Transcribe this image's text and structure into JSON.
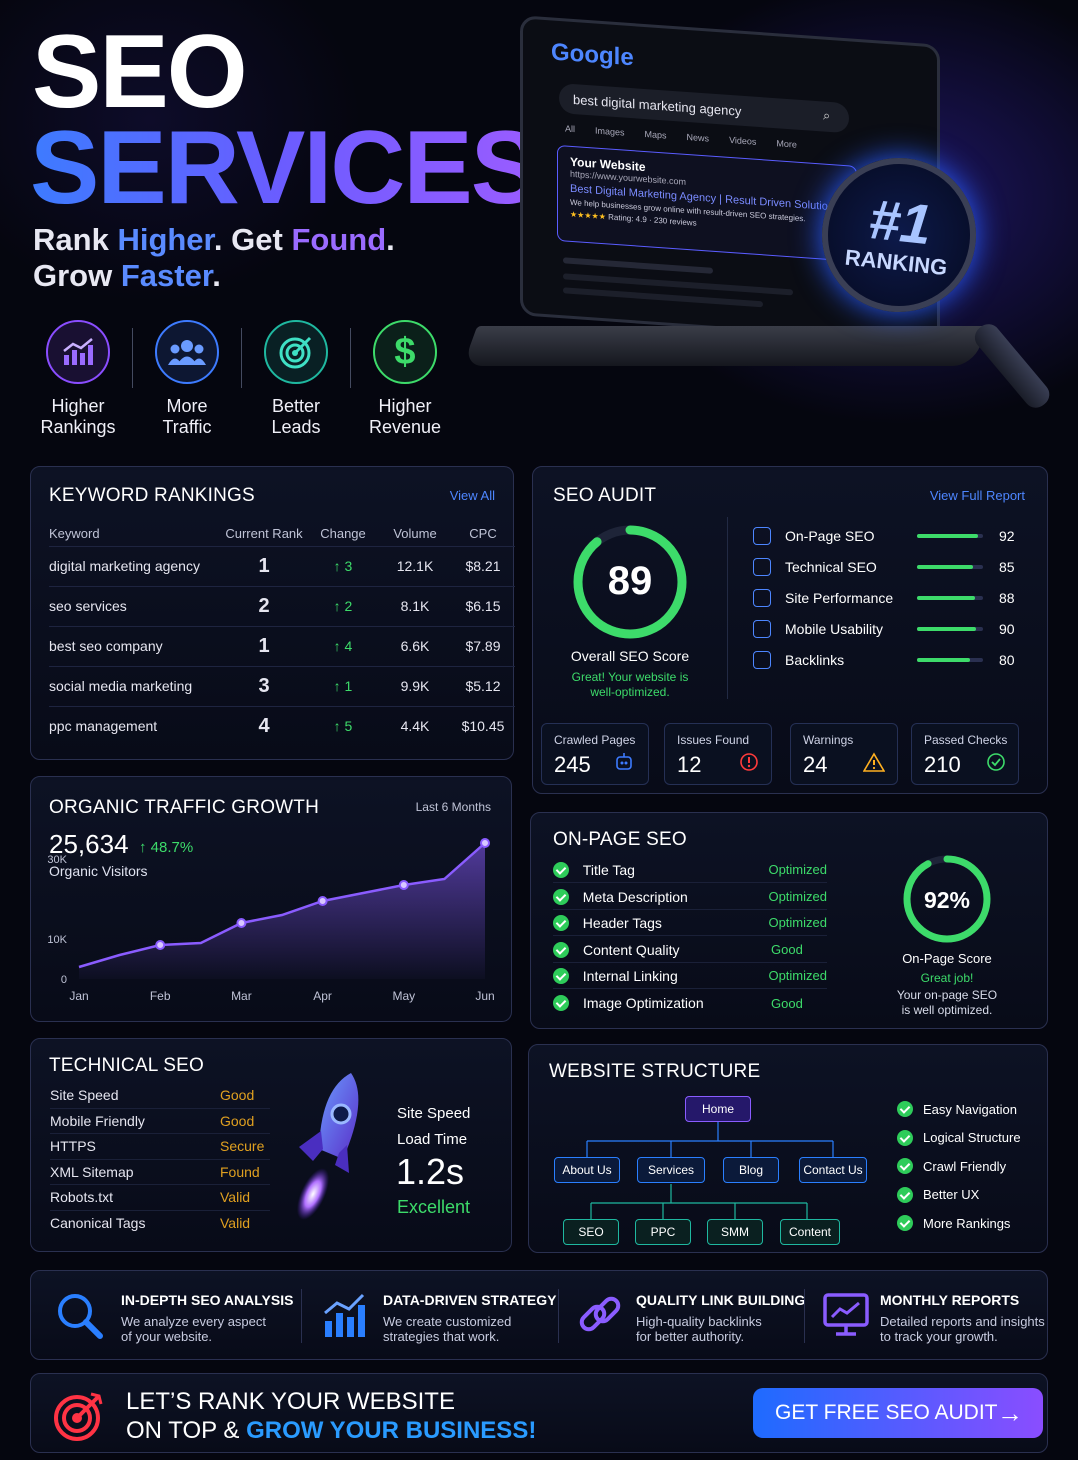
{
  "hero": {
    "title_line1": "SEO",
    "title_line2": "SERVICES",
    "tagline": {
      "w1": "Rank",
      "w2": "Higher",
      "w3": "Get",
      "w4": "Found",
      "w5": "Grow",
      "w6": "Faster"
    }
  },
  "benefits": [
    {
      "label_line1": "Higher",
      "label_line2": "Rankings",
      "icon": "chart-icon",
      "color": "#8a4dff"
    },
    {
      "label_line1": "More",
      "label_line2": "Traffic",
      "icon": "users-icon",
      "color": "#3d7bff"
    },
    {
      "label_line1": "Better",
      "label_line2": "Leads",
      "icon": "target-icon",
      "color": "#1fb8a0"
    },
    {
      "label_line1": "Higher",
      "label_line2": "Revenue",
      "icon": "dollar-icon",
      "color": "#3ddb6a"
    }
  ],
  "laptop": {
    "brand": "Google",
    "query": "best digital marketing agency",
    "tabs": [
      "All",
      "Images",
      "Maps",
      "News",
      "Videos",
      "More"
    ],
    "result_title": "Your Website",
    "result_url": "https://www.yourwebsite.com",
    "result_headline": "Best Digital Marketing Agency | Result Driven Solutions",
    "result_desc": "We help businesses grow online with result-driven SEO strategies.",
    "rating_stars": "★★★★★",
    "rating": "Rating: 4.9 · 230 reviews",
    "badge_number": "#1",
    "badge_text": "RANKING"
  },
  "keyword_rankings": {
    "title": "KEYWORD RANKINGS",
    "link": "View All",
    "headers": [
      "Keyword",
      "Current Rank",
      "Change",
      "Volume",
      "CPC"
    ],
    "rows": [
      {
        "keyword": "digital marketing agency",
        "rank": "1",
        "change": "↑ 3",
        "volume": "12.1K",
        "cpc": "$8.21"
      },
      {
        "keyword": "seo services",
        "rank": "2",
        "change": "↑ 2",
        "volume": "8.1K",
        "cpc": "$6.15"
      },
      {
        "keyword": "best seo company",
        "rank": "1",
        "change": "↑ 4",
        "volume": "6.6K",
        "cpc": "$7.89"
      },
      {
        "keyword": "social media marketing",
        "rank": "3",
        "change": "↑ 1",
        "volume": "9.9K",
        "cpc": "$5.12"
      },
      {
        "keyword": "ppc management",
        "rank": "4",
        "change": "↑ 5",
        "volume": "4.4K",
        "cpc": "$10.45"
      }
    ]
  },
  "seo_audit": {
    "title": "SEO AUDIT",
    "link": "View Full Report",
    "score": "89",
    "score_value": 0.89,
    "score_label": "Overall SEO Score",
    "score_note_line1": "Great! Your website is",
    "score_note_line2": "well-optimized.",
    "metrics": [
      {
        "label": "On-Page SEO",
        "value": "92",
        "fill": 0.92,
        "icon": "checklist-icon"
      },
      {
        "label": "Technical SEO",
        "value": "85",
        "fill": 0.85,
        "icon": "gear-icon"
      },
      {
        "label": "Site Performance",
        "value": "88",
        "fill": 0.88,
        "icon": "gauge-icon"
      },
      {
        "label": "Mobile Usability",
        "value": "90",
        "fill": 0.9,
        "icon": "mobile-icon"
      },
      {
        "label": "Backlinks",
        "value": "80",
        "fill": 0.8,
        "icon": "link-icon"
      }
    ],
    "stats": [
      {
        "label": "Crawled Pages",
        "value": "245",
        "icon": "robot-icon",
        "color": "#3d7bff"
      },
      {
        "label": "Issues Found",
        "value": "12",
        "icon": "alert-circle-icon",
        "color": "#ff3b3b"
      },
      {
        "label": "Warnings",
        "value": "24",
        "icon": "warning-icon",
        "color": "#ffb020"
      },
      {
        "label": "Passed Checks",
        "value": "210",
        "icon": "check-circle-icon",
        "color": "#3ddb6a"
      }
    ]
  },
  "organic_traffic": {
    "title": "ORGANIC TRAFFIC GROWTH",
    "period": "Last 6 Months",
    "visitors": "25,634",
    "growth": "↑ 48.7%",
    "visitors_label": "Organic Visitors"
  },
  "chart_data": {
    "type": "area",
    "x": [
      "Jan",
      "",
      "Feb",
      "",
      "Mar",
      "",
      "Apr",
      "",
      "May",
      "",
      "Jun"
    ],
    "xticks": [
      "Jan",
      "Feb",
      "Mar",
      "Apr",
      "May",
      "Jun"
    ],
    "yticks": [
      "0",
      "10K",
      "30K"
    ],
    "ylim": [
      0,
      35000
    ],
    "values": [
      3000,
      6000,
      8500,
      9000,
      14000,
      16000,
      19500,
      21500,
      23500,
      25000,
      34000
    ],
    "marker_indices": [
      2,
      4,
      6,
      8,
      10
    ],
    "color": "#8a5cff",
    "title": "",
    "xlabel": "",
    "ylabel": ""
  },
  "on_page": {
    "title": "ON-PAGE SEO",
    "items": [
      {
        "label": "Title Tag",
        "status": "Optimized"
      },
      {
        "label": "Meta Description",
        "status": "Optimized"
      },
      {
        "label": "Header Tags",
        "status": "Optimized"
      },
      {
        "label": "Content Quality",
        "status": "Good"
      },
      {
        "label": "Internal Linking",
        "status": "Optimized"
      },
      {
        "label": "Image Optimization",
        "status": "Good"
      }
    ],
    "score": "92%",
    "score_value": 0.92,
    "score_label": "On-Page Score",
    "note": "Great job!",
    "desc_line1": "Your on-page SEO",
    "desc_line2": "is well optimized."
  },
  "technical": {
    "title": "TECHNICAL SEO",
    "items": [
      {
        "label": "Site Speed",
        "status": "Good"
      },
      {
        "label": "Mobile Friendly",
        "status": "Good"
      },
      {
        "label": "HTTPS",
        "status": "Secure"
      },
      {
        "label": "XML Sitemap",
        "status": "Found"
      },
      {
        "label": "Robots.txt",
        "status": "Valid"
      },
      {
        "label": "Canonical Tags",
        "status": "Valid"
      }
    ],
    "speed_label1": "Site Speed",
    "speed_label2": "Load Time",
    "speed_value": "1.2s",
    "speed_rating": "Excellent"
  },
  "structure": {
    "title": "WEBSITE STRUCTURE",
    "home": "Home",
    "level1": [
      "About Us",
      "Services",
      "Blog",
      "Contact Us"
    ],
    "level2": [
      "SEO",
      "PPC",
      "SMM",
      "Content"
    ],
    "benefits": [
      "Easy Navigation",
      "Logical Structure",
      "Crawl Friendly",
      "Better UX",
      "More Rankings"
    ]
  },
  "features": [
    {
      "title": "IN-DEPTH SEO ANALYSIS",
      "desc_line1": "We analyze every aspect",
      "desc_line2": "of your website.",
      "icon": "magnifier-icon"
    },
    {
      "title": "DATA-DRIVEN STRATEGY",
      "desc_line1": "We create customized",
      "desc_line2": "strategies that work.",
      "icon": "bar-chart-icon"
    },
    {
      "title": "QUALITY LINK BUILDING",
      "desc_line1": "High-quality backlinks",
      "desc_line2": "for better authority.",
      "icon": "chain-link-icon"
    },
    {
      "title": "MONTHLY REPORTS",
      "desc_line1": "Detailed reports and insights",
      "desc_line2": "to track your growth.",
      "icon": "monitor-chart-icon"
    }
  ],
  "cta": {
    "line1": "LET’S RANK YOUR WEBSITE",
    "line2_a": "ON TOP &",
    "line2_b": "GROW YOUR BUSINESS!",
    "button": "GET FREE SEO AUDIT"
  }
}
